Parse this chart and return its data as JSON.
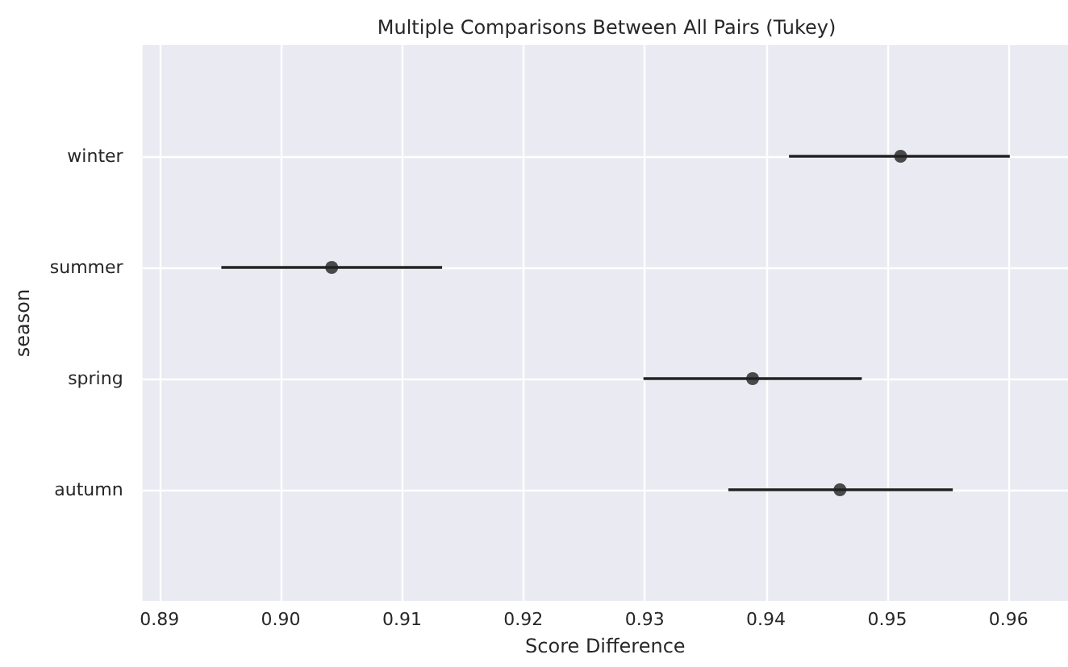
{
  "chart_data": {
    "type": "scatter",
    "title": "Multiple Comparisons Between All Pairs (Tukey)",
    "xlabel": "Score Difference",
    "ylabel": "season",
    "orientation": "horizontal",
    "categories": [
      "winter",
      "summer",
      "spring",
      "autumn"
    ],
    "values": [
      0.9511,
      0.9042,
      0.9389,
      0.9461
    ],
    "errors": [
      [
        0.9419,
        0.9601
      ],
      [
        0.8951,
        0.9133
      ],
      [
        0.9299,
        0.9479
      ],
      [
        0.9369,
        0.9554
      ]
    ],
    "color": "#222222",
    "marker": "circle",
    "grid": true,
    "xlim": [
      0.8886,
      0.9649
    ],
    "xticks": [
      0.89,
      {
        "value": 0.9,
        "label": "0.90"
      },
      0.91,
      0.92,
      0.93,
      0.94,
      0.95,
      0.96
    ]
  }
}
